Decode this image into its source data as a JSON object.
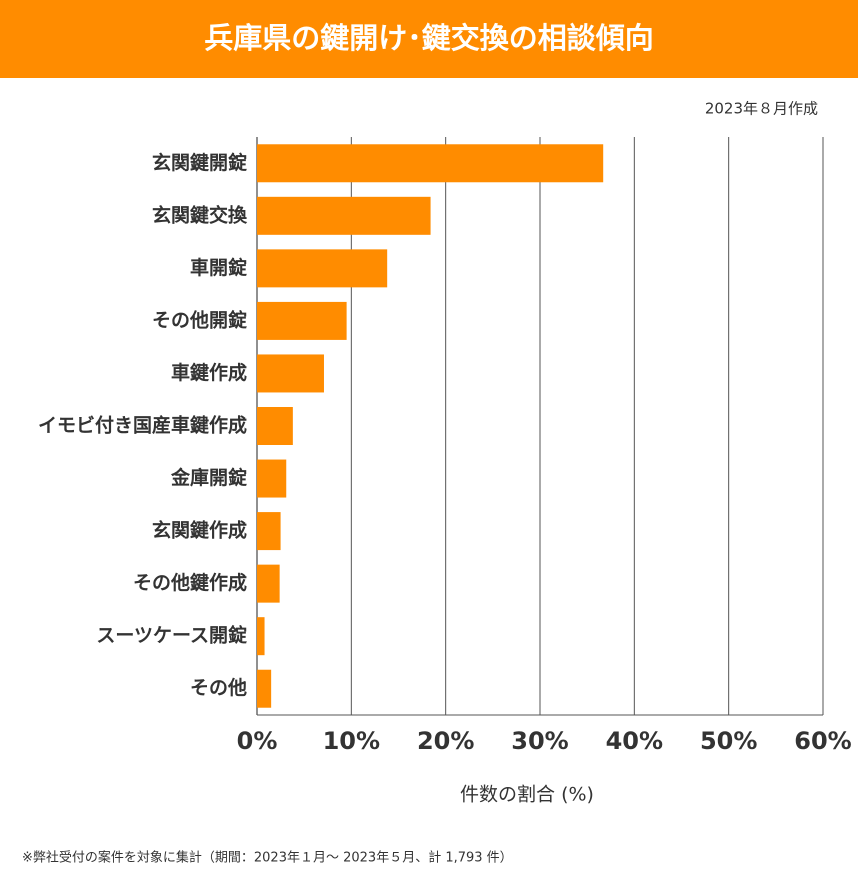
{
  "chart_data": {
    "type": "barh",
    "title": "兵庫県の鍵開け･鍵交換の相談傾向",
    "subtitle": "2023年８月作成",
    "xlabel": "件数の割合 (%)",
    "note": "※弊社受付の案件を対象に集計（期間：2023年１月～ 2023年５月、計 1,793 件）",
    "categories": [
      "玄関鍵開錠",
      "玄関鍵交換",
      "車開錠",
      "その他開錠",
      "車鍵作成",
      "イモビ付き国産車鍵作成",
      "金庫開錠",
      "玄関鍵作成",
      "その他鍵作成",
      "スーツケース開錠",
      "その他"
    ],
    "values": [
      36.7,
      18.4,
      13.8,
      9.5,
      7.1,
      3.8,
      3.1,
      2.5,
      2.4,
      0.8,
      1.5
    ],
    "color": "#ff8c00",
    "xlim": [
      0,
      60
    ],
    "xticks": [
      {
        "value": 0,
        "label": "0%"
      },
      {
        "value": 10,
        "label": "10%"
      },
      {
        "value": 20,
        "label": "20%"
      },
      {
        "value": 30,
        "label": "30%"
      },
      {
        "value": 40,
        "label": "40%"
      },
      {
        "value": 50,
        "label": "50%"
      },
      {
        "value": 60,
        "label": "60%"
      }
    ],
    "grid": true
  }
}
